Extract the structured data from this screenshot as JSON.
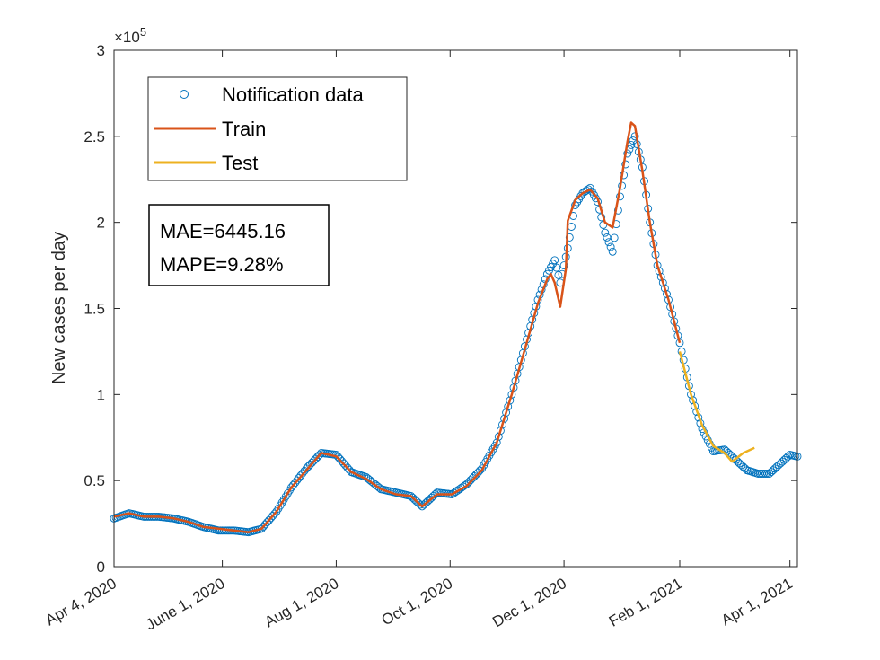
{
  "chart_data": {
    "type": "scatter",
    "ylabel": "New cases per day",
    "xlabel": "",
    "y_exponent_label": "×10",
    "y_exponent_power": "5",
    "ylim": [
      0,
      3
    ],
    "xlim": [
      "2020-04-04",
      "2021-04-05"
    ],
    "yticks": [
      0,
      0.5,
      1,
      1.5,
      2,
      2.5,
      3
    ],
    "ytick_labels": [
      "0",
      "0.5",
      "1",
      "1.5",
      "2",
      "2.5",
      "3"
    ],
    "xticks": [
      "2020-04-04",
      "2020-06-01",
      "2020-08-01",
      "2020-10-01",
      "2020-12-01",
      "2021-02-01",
      "2021-04-01"
    ],
    "xtick_labels": [
      "Apr 4, 2020",
      "June 1, 2020",
      "Aug 1, 2020",
      "Oct 1, 2020",
      "Dec 1, 2020",
      "Feb 1, 2021",
      "Apr 1, 2021"
    ],
    "legend_placement": "top-left",
    "legend": [
      "Notification data",
      "Train",
      "Test"
    ],
    "annotation": [
      "MAE=6445.16",
      "MAPE=9.28%"
    ],
    "colors": {
      "data": "#0072BD",
      "train": "#D95319",
      "test": "#EDB120"
    },
    "series": [
      {
        "name": "Notification data",
        "style": "markers",
        "points": [
          [
            "2020-04-04",
            0.28
          ],
          [
            "2020-04-12",
            0.31
          ],
          [
            "2020-04-20",
            0.29
          ],
          [
            "2020-04-28",
            0.29
          ],
          [
            "2020-05-06",
            0.28
          ],
          [
            "2020-05-14",
            0.26
          ],
          [
            "2020-05-22",
            0.23
          ],
          [
            "2020-05-30",
            0.21
          ],
          [
            "2020-06-07",
            0.21
          ],
          [
            "2020-06-15",
            0.2
          ],
          [
            "2020-06-22",
            0.22
          ],
          [
            "2020-06-30",
            0.32
          ],
          [
            "2020-07-08",
            0.46
          ],
          [
            "2020-07-16",
            0.57
          ],
          [
            "2020-07-24",
            0.66
          ],
          [
            "2020-08-01",
            0.65
          ],
          [
            "2020-08-09",
            0.55
          ],
          [
            "2020-08-17",
            0.52
          ],
          [
            "2020-08-25",
            0.45
          ],
          [
            "2020-09-02",
            0.43
          ],
          [
            "2020-09-10",
            0.41
          ],
          [
            "2020-09-16",
            0.35
          ],
          [
            "2020-09-24",
            0.43
          ],
          [
            "2020-10-02",
            0.42
          ],
          [
            "2020-10-10",
            0.48
          ],
          [
            "2020-10-18",
            0.57
          ],
          [
            "2020-10-26",
            0.72
          ],
          [
            "2020-11-03",
            1.0
          ],
          [
            "2020-11-11",
            1.32
          ],
          [
            "2020-11-17",
            1.55
          ],
          [
            "2020-11-22",
            1.7
          ],
          [
            "2020-11-26",
            1.78
          ],
          [
            "2020-11-29",
            1.65
          ],
          [
            "2020-12-03",
            1.85
          ],
          [
            "2020-12-07",
            2.1
          ],
          [
            "2020-12-11",
            2.17
          ],
          [
            "2020-12-15",
            2.2
          ],
          [
            "2020-12-19",
            2.12
          ],
          [
            "2020-12-23",
            1.94
          ],
          [
            "2020-12-27",
            1.83
          ],
          [
            "2020-12-31",
            2.15
          ],
          [
            "2021-01-04",
            2.4
          ],
          [
            "2021-01-08",
            2.5
          ],
          [
            "2021-01-12",
            2.32
          ],
          [
            "2021-01-16",
            2.0
          ],
          [
            "2021-01-20",
            1.75
          ],
          [
            "2021-01-26",
            1.55
          ],
          [
            "2021-02-01",
            1.3
          ],
          [
            "2021-02-07",
            1.0
          ],
          [
            "2021-02-13",
            0.8
          ],
          [
            "2021-02-19",
            0.67
          ],
          [
            "2021-02-25",
            0.68
          ],
          [
            "2021-03-03",
            0.62
          ],
          [
            "2021-03-09",
            0.56
          ],
          [
            "2021-03-15",
            0.54
          ],
          [
            "2021-03-21",
            0.54
          ],
          [
            "2021-03-27",
            0.6
          ],
          [
            "2021-04-01",
            0.65
          ],
          [
            "2021-04-05",
            0.64
          ]
        ]
      },
      {
        "name": "Train",
        "style": "line",
        "points": [
          [
            "2020-04-04",
            0.29
          ],
          [
            "2020-04-12",
            0.31
          ],
          [
            "2020-04-20",
            0.29
          ],
          [
            "2020-04-28",
            0.29
          ],
          [
            "2020-05-06",
            0.28
          ],
          [
            "2020-05-14",
            0.26
          ],
          [
            "2020-05-22",
            0.23
          ],
          [
            "2020-05-30",
            0.22
          ],
          [
            "2020-06-07",
            0.21
          ],
          [
            "2020-06-15",
            0.2
          ],
          [
            "2020-06-22",
            0.22
          ],
          [
            "2020-06-30",
            0.32
          ],
          [
            "2020-07-08",
            0.46
          ],
          [
            "2020-07-16",
            0.56
          ],
          [
            "2020-07-24",
            0.66
          ],
          [
            "2020-08-01",
            0.64
          ],
          [
            "2020-08-09",
            0.55
          ],
          [
            "2020-08-17",
            0.51
          ],
          [
            "2020-08-25",
            0.45
          ],
          [
            "2020-09-02",
            0.42
          ],
          [
            "2020-09-10",
            0.41
          ],
          [
            "2020-09-16",
            0.35
          ],
          [
            "2020-09-24",
            0.42
          ],
          [
            "2020-10-02",
            0.42
          ],
          [
            "2020-10-10",
            0.47
          ],
          [
            "2020-10-18",
            0.56
          ],
          [
            "2020-10-26",
            0.72
          ],
          [
            "2020-11-03",
            1.0
          ],
          [
            "2020-11-11",
            1.3
          ],
          [
            "2020-11-17",
            1.53
          ],
          [
            "2020-11-22",
            1.67
          ],
          [
            "2020-11-24",
            1.7
          ],
          [
            "2020-11-26",
            1.65
          ],
          [
            "2020-11-29",
            1.51
          ],
          [
            "2020-12-02",
            1.73
          ],
          [
            "2020-12-03",
            2.01
          ],
          [
            "2020-12-07",
            2.13
          ],
          [
            "2020-12-11",
            2.17
          ],
          [
            "2020-12-15",
            2.19
          ],
          [
            "2020-12-19",
            2.14
          ],
          [
            "2020-12-23",
            2.0
          ],
          [
            "2020-12-27",
            1.97
          ],
          [
            "2020-12-31",
            2.2
          ],
          [
            "2021-01-04",
            2.47
          ],
          [
            "2021-01-06",
            2.58
          ],
          [
            "2021-01-08",
            2.56
          ],
          [
            "2021-01-12",
            2.3
          ],
          [
            "2021-01-16",
            2.0
          ],
          [
            "2021-01-20",
            1.75
          ],
          [
            "2021-01-26",
            1.55
          ],
          [
            "2021-02-01",
            1.3
          ]
        ]
      },
      {
        "name": "Test",
        "style": "line",
        "points": [
          [
            "2021-02-01",
            1.25
          ],
          [
            "2021-02-07",
            1.0
          ],
          [
            "2021-02-13",
            0.82
          ],
          [
            "2021-02-19",
            0.7
          ],
          [
            "2021-02-25",
            0.66
          ],
          [
            "2021-03-01",
            0.61
          ],
          [
            "2021-03-07",
            0.66
          ],
          [
            "2021-03-13",
            0.69
          ]
        ]
      }
    ]
  }
}
